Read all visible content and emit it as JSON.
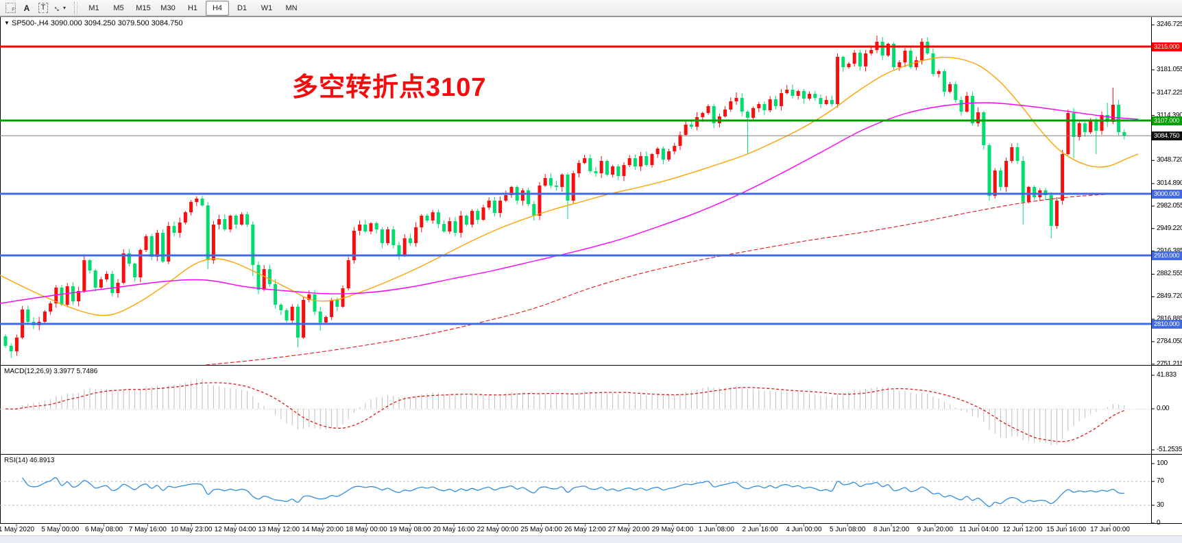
{
  "toolbar": {
    "icons": [
      {
        "name": "grid-f-icon",
        "label": "F"
      },
      {
        "name": "letter-a-icon",
        "label": "A"
      },
      {
        "name": "text-object-icon",
        "label": "T"
      },
      {
        "name": "diagonal-arrows-icon",
        "label": "↔",
        "caret": "▾"
      }
    ],
    "timeframes": [
      "M1",
      "M5",
      "M15",
      "M30",
      "H1",
      "H4",
      "D1",
      "W1",
      "MN"
    ],
    "active_timeframe": "H4"
  },
  "chart": {
    "symbol_caret": "▼",
    "symbol_line": "SP500-,H4  3090.000 3094.250 3079.500 3084.750",
    "ohlc": {
      "open": 3090.0,
      "high": 3094.25,
      "low": 3079.5,
      "close": 3084.75
    },
    "annotation": {
      "text": "多空转折点3107",
      "color": "#f20c0c"
    }
  },
  "price_axis": {
    "ticks": [
      3246.725,
      3181.055,
      3147.225,
      3114.39,
      3048.72,
      3014.89,
      2982.055,
      2949.22,
      2916.385,
      2882.555,
      2849.72,
      2816.885,
      2784.05,
      2751.215
    ],
    "badges": [
      {
        "text": "3215.000",
        "price": 3215.0,
        "bg": "#fe0000"
      },
      {
        "text": "3107.000",
        "price": 3107.0,
        "bg": "#00a000"
      },
      {
        "text": "3084.750",
        "price": 3084.75,
        "bg": "#101010"
      },
      {
        "text": "3000.000",
        "price": 3000.0,
        "bg": "#4169e1"
      },
      {
        "text": "2910.000",
        "price": 2910.0,
        "bg": "#4169e1"
      },
      {
        "text": "2810.000",
        "price": 2810.0,
        "bg": "#4169e1"
      }
    ]
  },
  "time_axis": {
    "labels": [
      "1 May 2020",
      "5 May 00:00",
      "6 May 08:00",
      "7 May 16:00",
      "10 May 23:00",
      "12 May 04:00",
      "13 May 12:00",
      "14 May 20:00",
      "18 May 00:00",
      "19 May 08:00",
      "20 May 16:00",
      "22 May 00:00",
      "25 May 04:00",
      "26 May 12:00",
      "27 May 20:00",
      "29 May 04:00",
      "1 Jun 08:00",
      "2 Jun 16:00",
      "4 Jun 00:00",
      "5 Jun 08:00",
      "8 Jun 12:00",
      "9 Jun 20:00",
      "11 Jun 04:00",
      "12 Jun 12:00",
      "15 Jun 16:00",
      "17 Jun 00:00"
    ]
  },
  "main_chart": {
    "hlines": [
      {
        "price": 3215.0,
        "color": "#fe0000",
        "width": 3
      },
      {
        "price": 3107.0,
        "color": "#00a000",
        "width": 3
      },
      {
        "price": 3084.75,
        "color": "#808080",
        "width": 1
      },
      {
        "price": 3000.0,
        "color": "#4169e1",
        "width": 3
      },
      {
        "price": 2910.0,
        "color": "#4169e1",
        "width": 3
      },
      {
        "price": 2810.0,
        "color": "#4169e1",
        "width": 3
      }
    ],
    "candles": {
      "up_color": "#f70f0f",
      "down_color": "#00dc6e",
      "open0": 2792,
      "closes": [
        2778,
        2770,
        2790,
        2831,
        2813,
        2808,
        2813,
        2828,
        2840,
        2863,
        2838,
        2865,
        2843,
        2858,
        2903,
        2888,
        2863,
        2875,
        2883,
        2855,
        2870,
        2913,
        2898,
        2878,
        2918,
        2938,
        2908,
        2943,
        2901,
        2953,
        2943,
        2958,
        2973,
        2988,
        2993,
        2983,
        2903,
        2955,
        2963,
        2948,
        2968,
        2955,
        2970,
        2955,
        2896,
        2860,
        2890,
        2868,
        2838,
        2830,
        2815,
        2835,
        2790,
        2845,
        2853,
        2828,
        2812,
        2820,
        2845,
        2835,
        2862,
        2903,
        2946,
        2955,
        2945,
        2957,
        2948,
        2928,
        2948,
        2925,
        2910,
        2935,
        2928,
        2951,
        2968,
        2961,
        2973,
        2956,
        2945,
        2960,
        2943,
        2968,
        2955,
        2975,
        2962,
        2980,
        2990,
        2972,
        2990,
        2998,
        3010,
        2990,
        3005,
        2985,
        2968,
        3012,
        3023,
        3012,
        3010,
        3028,
        2990,
        3030,
        3045,
        3052,
        3033,
        3030,
        3048,
        3028,
        3040,
        3026,
        3042,
        3052,
        3040,
        3055,
        3042,
        3058,
        3066,
        3050,
        3062,
        3070,
        3086,
        3101,
        3098,
        3112,
        3118,
        3128,
        3103,
        3113,
        3123,
        3135,
        3140,
        3120,
        3111,
        3125,
        3131,
        3122,
        3138,
        3128,
        3147,
        3152,
        3143,
        3150,
        3139,
        3146,
        3140,
        3131,
        3137,
        3131,
        3200,
        3185,
        3190,
        3206,
        3186,
        3205,
        3210,
        3222,
        3202,
        3219,
        3185,
        3192,
        3209,
        3185,
        3195,
        3222,
        3205,
        3175,
        3179,
        3149,
        3160,
        3137,
        3120,
        3143,
        3103,
        3119,
        3071,
        2997,
        3034,
        3010,
        3048,
        3068,
        3048,
        2988,
        3010,
        2995,
        3005,
        2998,
        2953,
        2990,
        3058,
        3118,
        3083,
        3103,
        3090,
        3107,
        3092,
        3115,
        3105,
        3130,
        3090,
        3084.75
      ],
      "wick_overrides": {
        "1": {
          "low": 2760
        },
        "36": {
          "low": 2890
        },
        "44": {
          "low": 2880
        },
        "52": {
          "low": 2776
        },
        "56": {
          "low": 2800
        },
        "94": {
          "low": 2961
        },
        "100": {
          "low": 2963
        },
        "126": {
          "low": 3096
        },
        "130": {
          "high": 3148
        },
        "132": {
          "low": 3058
        },
        "148": {
          "high": 3205
        },
        "151": {
          "high": 3210
        },
        "154": {
          "high": 3215
        },
        "155": {
          "high": 3231
        },
        "163": {
          "high": 3227
        },
        "175": {
          "low": 2990
        },
        "181": {
          "low": 2955
        },
        "186": {
          "low": 2935
        },
        "189": {
          "high": 3123
        },
        "190": {
          "low": 3052
        },
        "194": {
          "low": 3058
        },
        "196": {
          "high": 3133
        },
        "197": {
          "high": 3155
        },
        "199": {
          "high": 3094.25,
          "low": 3079.5
        }
      }
    },
    "moving_averages": [
      {
        "name": "ma-fast-orange",
        "color": "#ffa200",
        "width": 1.4,
        "dash": "",
        "points": [
          [
            0,
            2881
          ],
          [
            60,
            2852
          ],
          [
            120,
            2828
          ],
          [
            160,
            2823
          ],
          [
            200,
            2840
          ],
          [
            240,
            2866
          ],
          [
            280,
            2895
          ],
          [
            310,
            2905
          ],
          [
            340,
            2900
          ],
          [
            380,
            2882
          ],
          [
            420,
            2862
          ],
          [
            455,
            2845
          ],
          [
            490,
            2845
          ],
          [
            530,
            2858
          ],
          [
            570,
            2874
          ],
          [
            610,
            2892
          ],
          [
            650,
            2912
          ],
          [
            690,
            2932
          ],
          [
            730,
            2950
          ],
          [
            770,
            2965
          ],
          [
            810,
            2978
          ],
          [
            850,
            2989
          ],
          [
            890,
            3000
          ],
          [
            930,
            3009
          ],
          [
            970,
            3019
          ],
          [
            1010,
            3031
          ],
          [
            1050,
            3044
          ],
          [
            1090,
            3058
          ],
          [
            1130,
            3076
          ],
          [
            1170,
            3096
          ],
          [
            1210,
            3120
          ],
          [
            1250,
            3149
          ],
          [
            1290,
            3174
          ],
          [
            1330,
            3190
          ],
          [
            1370,
            3199
          ],
          [
            1400,
            3197
          ],
          [
            1430,
            3186
          ],
          [
            1460,
            3162
          ],
          [
            1490,
            3128
          ],
          [
            1520,
            3090
          ],
          [
            1550,
            3060
          ],
          [
            1585,
            3042
          ],
          [
            1615,
            3040
          ],
          [
            1645,
            3052
          ],
          [
            1660,
            3058
          ]
        ]
      },
      {
        "name": "ma-mid-magenta",
        "color": "#ff00ff",
        "width": 1.4,
        "dash": "",
        "points": [
          [
            0,
            2840
          ],
          [
            80,
            2852
          ],
          [
            160,
            2862
          ],
          [
            240,
            2872
          ],
          [
            300,
            2874
          ],
          [
            360,
            2864
          ],
          [
            420,
            2858
          ],
          [
            480,
            2854
          ],
          [
            540,
            2856
          ],
          [
            600,
            2864
          ],
          [
            660,
            2876
          ],
          [
            720,
            2888
          ],
          [
            780,
            2902
          ],
          [
            840,
            2916
          ],
          [
            900,
            2932
          ],
          [
            960,
            2952
          ],
          [
            1020,
            2974
          ],
          [
            1080,
            3000
          ],
          [
            1140,
            3030
          ],
          [
            1200,
            3062
          ],
          [
            1260,
            3094
          ],
          [
            1320,
            3117
          ],
          [
            1380,
            3129
          ],
          [
            1440,
            3133
          ],
          [
            1500,
            3128
          ],
          [
            1560,
            3120
          ],
          [
            1620,
            3112
          ],
          [
            1660,
            3109
          ]
        ]
      },
      {
        "name": "ma-slow-red",
        "color": "#f01010",
        "width": 1.1,
        "dash": "6 3",
        "points": [
          [
            300,
            2750
          ],
          [
            380,
            2758
          ],
          [
            460,
            2768
          ],
          [
            540,
            2780
          ],
          [
            620,
            2794
          ],
          [
            700,
            2812
          ],
          [
            780,
            2833
          ],
          [
            860,
            2862
          ],
          [
            940,
            2885
          ],
          [
            1020,
            2903
          ],
          [
            1100,
            2918
          ],
          [
            1180,
            2932
          ],
          [
            1260,
            2944
          ],
          [
            1340,
            2958
          ],
          [
            1420,
            2974
          ],
          [
            1500,
            2988
          ],
          [
            1580,
            2997
          ],
          [
            1660,
            3001
          ]
        ]
      }
    ]
  },
  "macd": {
    "label": "MACD(12,26,9) 3.3977 5.7486",
    "params": [
      12,
      26,
      9
    ],
    "main_value": 3.3977,
    "signal_value": 5.7486,
    "axis": [
      {
        "text": "41.833",
        "value": 41.833
      },
      {
        "text": "0.00",
        "value": 0
      },
      {
        "text": "-51.2535",
        "value": -51.2535
      }
    ],
    "bar_color": "#bdbdbd",
    "signal_color": "#e01818"
  },
  "rsi": {
    "label": "RSI(14) 46.8913",
    "period": 14,
    "value": 46.8913,
    "axis": [
      {
        "text": "100",
        "value": 100
      },
      {
        "text": "70",
        "value": 70
      },
      {
        "text": "30",
        "value": 30
      },
      {
        "text": "0",
        "value": 0
      }
    ],
    "levels": [
      70,
      30
    ],
    "line_color": "#2f8ce0"
  }
}
